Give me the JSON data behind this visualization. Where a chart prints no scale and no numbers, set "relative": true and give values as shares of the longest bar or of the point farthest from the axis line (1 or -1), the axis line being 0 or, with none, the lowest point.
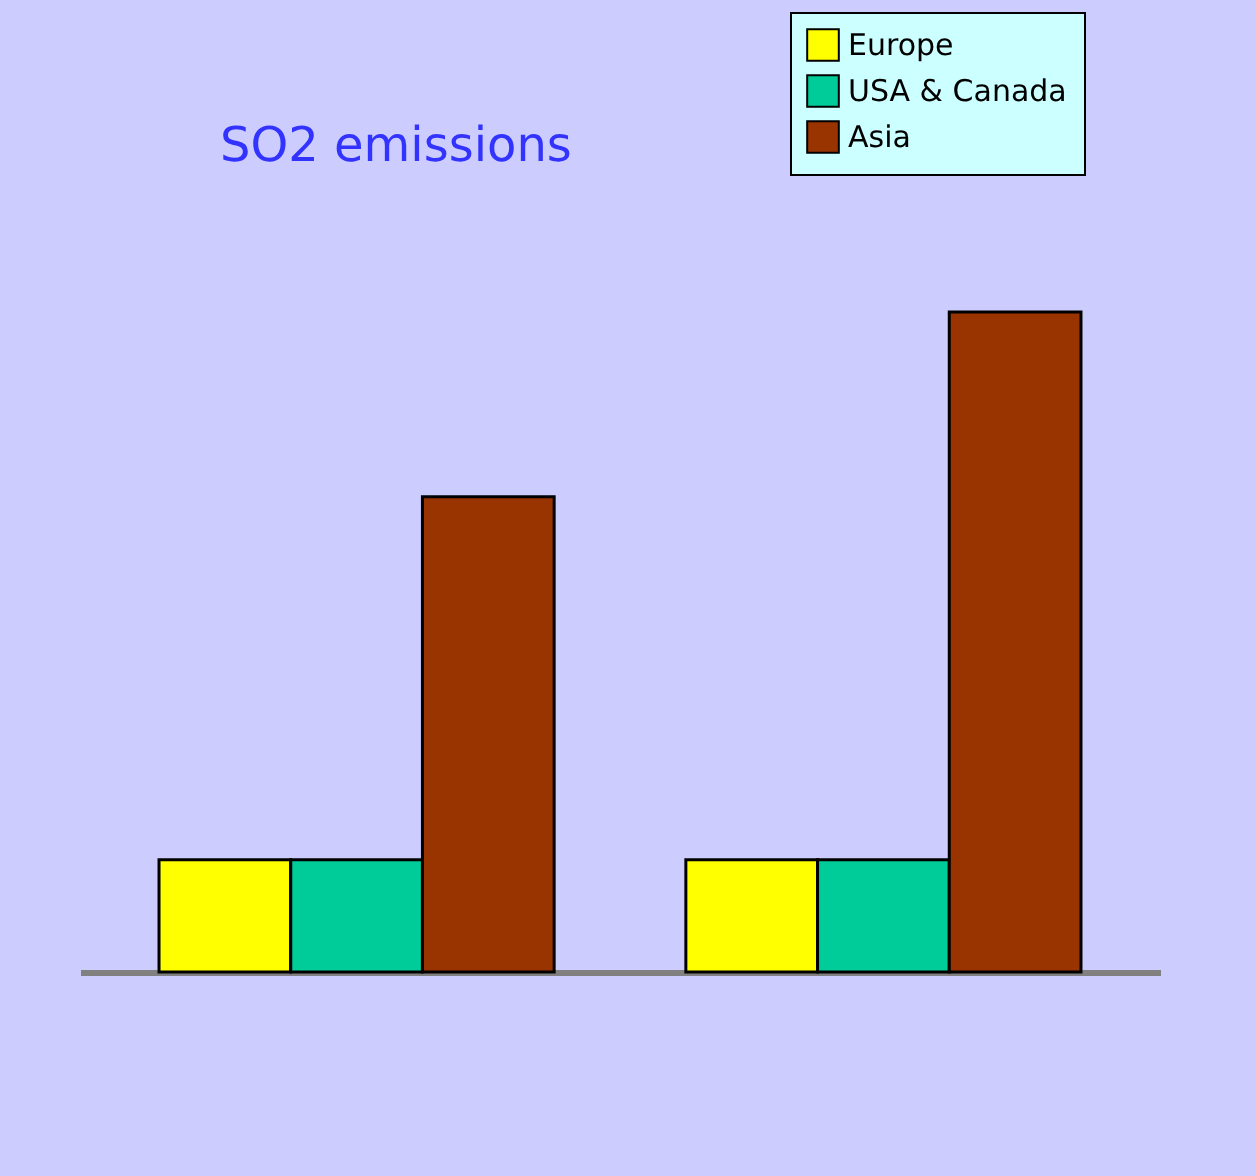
{
  "chart_data": {
    "type": "bar",
    "title": "SO2 emissions",
    "relative": true,
    "legend": "top right",
    "categories": [
      null,
      null
    ],
    "series": [
      {
        "name": "Europe",
        "color": "#ffff00",
        "values": [
          0.17,
          0.17
        ]
      },
      {
        "name": "USA & Canada",
        "color": "#00cc99",
        "values": [
          0.17,
          0.17
        ]
      },
      {
        "name": "Asia",
        "color": "#993300",
        "values": [
          0.72,
          1
        ]
      }
    ]
  }
}
